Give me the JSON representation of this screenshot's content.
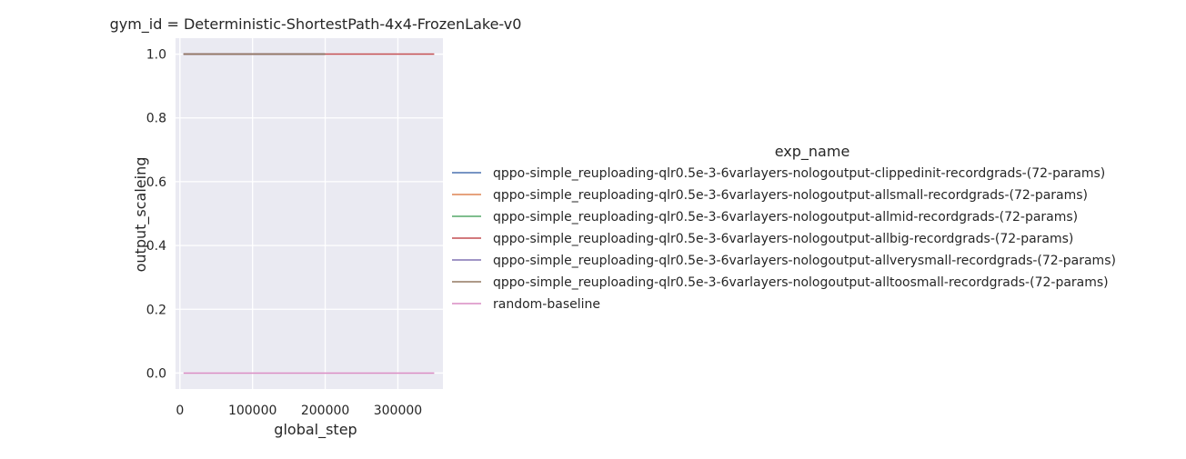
{
  "chart_data": {
    "type": "line",
    "title": "gym_id = Deterministic-ShortestPath-4x4-FrozenLake-v0",
    "xlabel": "global_step",
    "ylabel": "output_scaleing",
    "xlim": [
      -6000,
      362000
    ],
    "ylim": [
      -0.05,
      1.05
    ],
    "xticks": [
      0,
      100000,
      200000,
      300000
    ],
    "xtick_labels": [
      "0",
      "100000",
      "200000",
      "300000"
    ],
    "yticks": [
      0.0,
      0.2,
      0.4,
      0.6,
      0.8,
      1.0
    ],
    "ytick_labels": [
      "0.0",
      "0.2",
      "0.4",
      "0.6",
      "0.8",
      "1.0"
    ],
    "grid": true,
    "background": "#eaeaf2",
    "legend_title": "exp_name",
    "legend_position": "right",
    "series": [
      {
        "name": "qppo-simple_reuploading-qlr0.5e-3-6varlayers-nologoutput-clippedinit-recordgrads-(72-params)",
        "color": "#4c72b0",
        "x": [
          5000,
          200000
        ],
        "y": [
          1.0,
          1.0
        ]
      },
      {
        "name": "qppo-simple_reuploading-qlr0.5e-3-6varlayers-nologoutput-allsmall-recordgrads-(72-params)",
        "color": "#dd8452",
        "x": [
          5000,
          200000
        ],
        "y": [
          1.0,
          1.0
        ]
      },
      {
        "name": "qppo-simple_reuploading-qlr0.5e-3-6varlayers-nologoutput-allmid-recordgrads-(72-params)",
        "color": "#55a868",
        "x": [
          5000,
          200000
        ],
        "y": [
          1.0,
          1.0
        ]
      },
      {
        "name": "qppo-simple_reuploading-qlr0.5e-3-6varlayers-nologoutput-allbig-recordgrads-(72-params)",
        "color": "#c44e52",
        "x": [
          5000,
          350000
        ],
        "y": [
          1.0,
          1.0
        ]
      },
      {
        "name": "qppo-simple_reuploading-qlr0.5e-3-6varlayers-nologoutput-allverysmall-recordgrads-(72-params)",
        "color": "#8172b3",
        "x": [
          5000,
          200000
        ],
        "y": [
          1.0,
          1.0
        ]
      },
      {
        "name": "qppo-simple_reuploading-qlr0.5e-3-6varlayers-nologoutput-alltoosmall-recordgrads-(72-params)",
        "color": "#937860",
        "x": [
          5000,
          200000
        ],
        "y": [
          1.0,
          1.0
        ]
      },
      {
        "name": "random-baseline",
        "color": "#da8bc3",
        "x": [
          5000,
          350000
        ],
        "y": [
          0.0,
          0.0
        ]
      }
    ]
  }
}
